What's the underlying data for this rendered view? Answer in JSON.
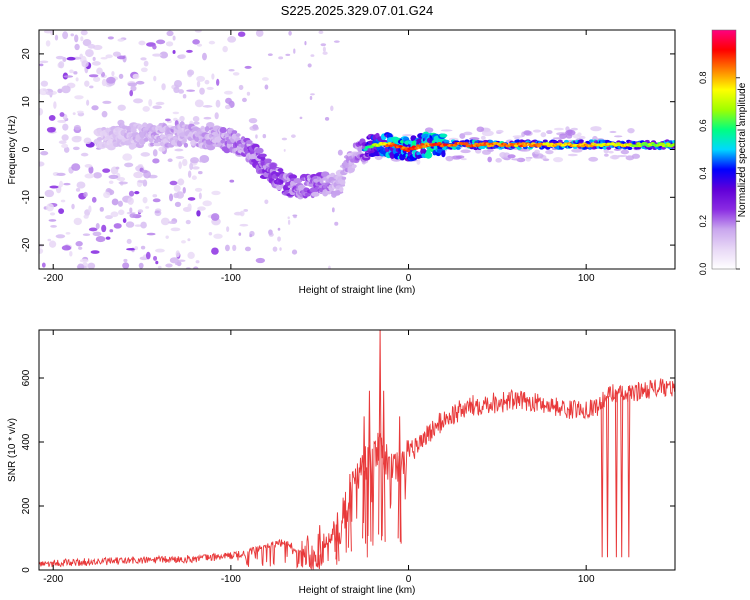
{
  "chart_data": [
    {
      "type": "heatmap",
      "title": "S225.2025.329.07.01.G24",
      "xlabel": "Height of straight line (km)",
      "ylabel": "Frequency (Hz)",
      "xlim": [
        -208,
        150
      ],
      "ylim": [
        -25,
        25
      ],
      "x_ticks": [
        -200,
        -100,
        0,
        100
      ],
      "y_ticks": [
        -20,
        -10,
        0,
        10,
        20
      ],
      "colorbar": {
        "label": "Normalized spectral amplitude",
        "range": [
          0,
          1
        ],
        "ticks": [
          "0.0",
          "0.2",
          "0.4",
          "0.6",
          "0.8"
        ],
        "colors": [
          "#ffffff",
          "#e8d8f6",
          "#c9a6ee",
          "#8a2be2",
          "#6000d8",
          "#0000ff",
          "#00d8ff",
          "#00ff80",
          "#a0ff00",
          "#ffff00",
          "#ff8000",
          "#ff0000",
          "#ff0080"
        ]
      },
      "ridge": {
        "x": [
          -200,
          -180,
          -160,
          -140,
          -120,
          -100,
          -90,
          -80,
          -70,
          -60,
          -50,
          -45,
          -40,
          -35,
          -30,
          -20,
          -10,
          0,
          10,
          20,
          40,
          60,
          80,
          100,
          120,
          150
        ],
        "freq": [
          1,
          2,
          3,
          3,
          3,
          2,
          0,
          -4,
          -7,
          -8,
          -7,
          -7,
          -8,
          -4,
          -1,
          1,
          1,
          0,
          1,
          1,
          1,
          1,
          1,
          1,
          1,
          1
        ],
        "amplitude": [
          0.2,
          0.2,
          0.25,
          0.3,
          0.3,
          0.35,
          0.4,
          0.45,
          0.45,
          0.4,
          0.4,
          0.35,
          0.3,
          0.3,
          0.35,
          0.7,
          0.9,
          0.95,
          0.9,
          0.95,
          0.9,
          0.9,
          0.85,
          0.85,
          0.8,
          0.8
        ]
      },
      "noise_region": {
        "x_range": [
          -208,
          -95
        ],
        "freq_range": [
          -25,
          25
        ]
      }
    },
    {
      "type": "line",
      "xlabel": "Height of straight line (km)",
      "ylabel": "SNR (10 * v/v)",
      "xlim": [
        -208,
        150
      ],
      "ylim": [
        0,
        750
      ],
      "x_ticks": [
        -200,
        -100,
        0,
        100
      ],
      "y_ticks": [
        0,
        200,
        400,
        600
      ],
      "series": [
        {
          "name": "SNR",
          "color": "#e8393a",
          "x": [
            -208,
            -180,
            -150,
            -120,
            -100,
            -90,
            -80,
            -70,
            -60,
            -50,
            -40,
            -35,
            -30,
            -25,
            -20,
            -17,
            -15,
            -10,
            -5,
            0,
            10,
            20,
            30,
            40,
            50,
            60,
            70,
            80,
            90,
            100,
            106,
            110,
            113,
            116,
            119,
            122,
            125,
            130,
            140,
            150
          ],
          "y": [
            20,
            25,
            30,
            35,
            45,
            55,
            75,
            85,
            60,
            55,
            110,
            200,
            280,
            330,
            370,
            380,
            360,
            320,
            330,
            360,
            420,
            470,
            500,
            520,
            525,
            530,
            525,
            515,
            500,
            505,
            510,
            530,
            550,
            555,
            550,
            545,
            550,
            560,
            570,
            565
          ],
          "spikes": [
            {
              "x": -50,
              "y": 140
            },
            {
              "x": -40,
              "y": 180
            },
            {
              "x": -33,
              "y": 300
            },
            {
              "x": -25,
              "y": 480
            },
            {
              "x": -22,
              "y": 560
            },
            {
              "x": -16,
              "y": 750
            },
            {
              "x": -14,
              "y": 560
            },
            {
              "x": -5,
              "y": 480
            }
          ],
          "dropouts": [
            {
              "x": 109,
              "y": 40
            },
            {
              "x": 112,
              "y": 40
            },
            {
              "x": 117,
              "y": 40
            },
            {
              "x": 120,
              "y": 40
            },
            {
              "x": 124,
              "y": 40
            }
          ]
        }
      ]
    }
  ]
}
